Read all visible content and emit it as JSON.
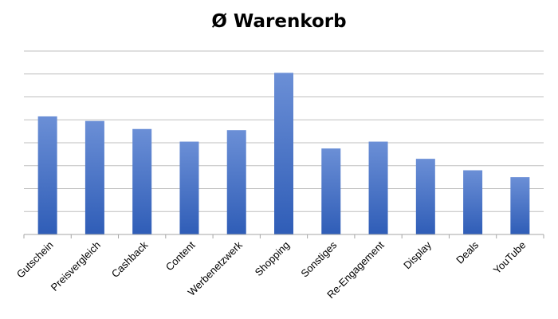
{
  "chart_data": {
    "type": "bar",
    "title": "Ø Warenkorb",
    "xlabel": "",
    "ylabel": "",
    "categories": [
      "Gutschein",
      "Preisvergleich",
      "Cashback",
      "Content",
      "Werbenetzwerk",
      "Shopping",
      "Sonstiges",
      "Re-Engagement",
      "Display",
      "Deals",
      "YouTube"
    ],
    "values": [
      5.15,
      4.95,
      4.6,
      4.05,
      4.55,
      7.05,
      3.75,
      4.05,
      3.3,
      2.8,
      2.5
    ],
    "ylim": [
      0,
      8
    ],
    "y_ticks_labeled": false,
    "grid": true,
    "legend": "none",
    "colors": {
      "bar_top": "#6B8FD6",
      "bar_bottom": "#2F5DB7",
      "grid": "#BFBFBF",
      "axis": "#A6A6A6"
    }
  }
}
